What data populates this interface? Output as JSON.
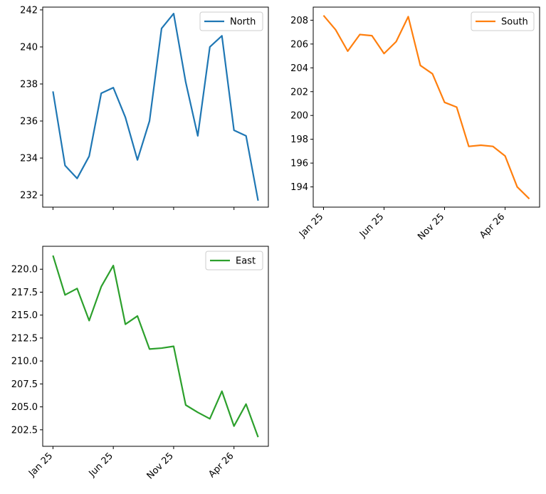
{
  "chart_data": [
    {
      "type": "line",
      "x": [
        "2025-01",
        "2025-02",
        "2025-03",
        "2025-04",
        "2025-05",
        "2025-06",
        "2025-07",
        "2025-08",
        "2025-09",
        "2025-10",
        "2025-11",
        "2025-12",
        "2026-01",
        "2026-02",
        "2026-03",
        "2026-04",
        "2026-05",
        "2026-06"
      ],
      "x_tick_values": [
        "2025-01",
        "2025-06",
        "2025-11",
        "2026-04"
      ],
      "x_tick_labels": [],
      "series": [
        {
          "name": "North",
          "color": "#1f77b4",
          "values": [
            237.6,
            233.6,
            232.9,
            234.1,
            237.5,
            237.8,
            236.2,
            233.9,
            236.0,
            241.0,
            241.8,
            238.1,
            235.2,
            240.0,
            240.6,
            235.5,
            235.2,
            231.7
          ]
        }
      ],
      "ylim": [
        231.35,
        242.15
      ],
      "yticks": [
        232,
        234,
        236,
        238,
        240,
        242
      ],
      "ytick_labels": [
        "232",
        "234",
        "236",
        "238",
        "240",
        "242"
      ],
      "legend": "upper right"
    },
    {
      "type": "line",
      "x": [
        "2025-01",
        "2025-02",
        "2025-03",
        "2025-04",
        "2025-05",
        "2025-06",
        "2025-07",
        "2025-08",
        "2025-09",
        "2025-10",
        "2025-11",
        "2025-12",
        "2026-01",
        "2026-02",
        "2026-03",
        "2026-04",
        "2026-05",
        "2026-06"
      ],
      "x_tick_values": [
        "2025-01",
        "2025-06",
        "2025-11",
        "2026-04"
      ],
      "x_tick_labels": [
        "Jan 25",
        "Jun 25",
        "Nov 25",
        "Apr 26"
      ],
      "series": [
        {
          "name": "South",
          "color": "#ff7f0e",
          "values": [
            208.4,
            207.2,
            205.4,
            206.8,
            206.7,
            205.2,
            206.2,
            208.3,
            204.2,
            203.5,
            201.1,
            200.7,
            197.4,
            197.5,
            197.4,
            196.6,
            194.0,
            193.0
          ]
        }
      ],
      "ylim": [
        192.3,
        209.1
      ],
      "yticks": [
        194,
        196,
        198,
        200,
        202,
        204,
        206,
        208
      ],
      "ytick_labels": [
        "194",
        "196",
        "198",
        "200",
        "202",
        "204",
        "206",
        "208"
      ],
      "legend": "upper right"
    },
    {
      "type": "line",
      "x": [
        "2025-01",
        "2025-02",
        "2025-03",
        "2025-04",
        "2025-05",
        "2025-06",
        "2025-07",
        "2025-08",
        "2025-09",
        "2025-10",
        "2025-11",
        "2025-12",
        "2026-01",
        "2026-02",
        "2026-03",
        "2026-04",
        "2026-05",
        "2026-06"
      ],
      "x_tick_values": [
        "2025-01",
        "2025-06",
        "2025-11",
        "2026-04"
      ],
      "x_tick_labels": [
        "Jan 25",
        "Jun 25",
        "Nov 25",
        "Apr 26"
      ],
      "series": [
        {
          "name": "East",
          "color": "#2ca02c",
          "values": [
            221.5,
            217.2,
            217.9,
            214.4,
            218.1,
            220.4,
            214.0,
            214.9,
            211.3,
            211.4,
            211.6,
            205.2,
            204.4,
            203.7,
            206.7,
            202.9,
            205.3,
            201.7
          ]
        }
      ],
      "ylim": [
        200.7,
        222.5
      ],
      "yticks": [
        202.5,
        205.0,
        207.5,
        210.0,
        212.5,
        215.0,
        217.5,
        220.0
      ],
      "ytick_labels": [
        "202.5",
        "205.0",
        "207.5",
        "210.0",
        "212.5",
        "215.0",
        "217.5",
        "220.0"
      ],
      "legend": "upper right"
    }
  ]
}
